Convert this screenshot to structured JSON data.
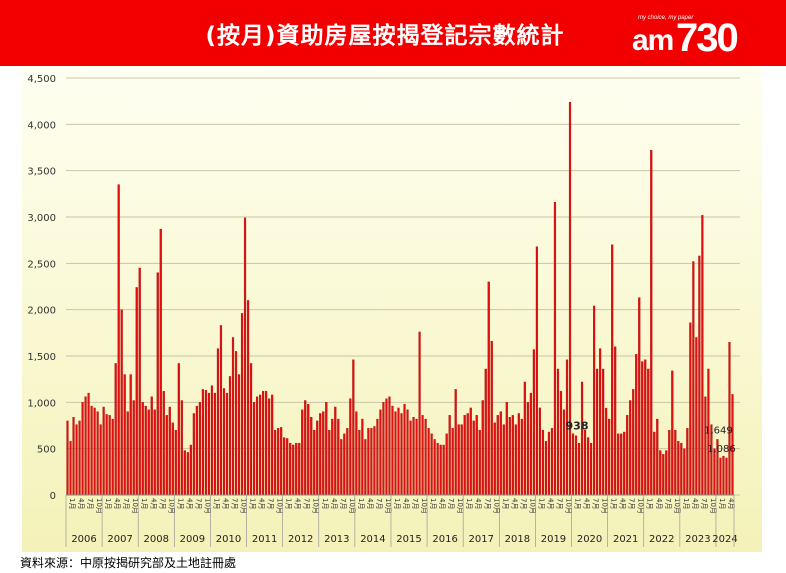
{
  "header": {
    "title": "(按月)資助房屋按揭登記宗數統計",
    "logo_tagline": "my choice, my paper",
    "logo_am": "am",
    "logo_number": "730"
  },
  "source_note": "資料來源：中原按揭研究部及土地註冊處",
  "colors": {
    "banner": "#f20000",
    "bar": "#e01010",
    "bar_edge": "#a80000",
    "plot_bg_top": "#fffff2",
    "plot_bg_bottom": "#f4f2b8"
  },
  "chart_data": {
    "type": "bar",
    "title": "(按月)資助房屋按揭登記宗數統計",
    "ylim": [
      0,
      4500
    ],
    "y_ticks": [
      "0",
      "500",
      "1,000",
      "1,500",
      "2,000",
      "2,500",
      "3,000",
      "3,500",
      "4,000",
      "4,500"
    ],
    "grid": true,
    "month_tick_labels": [
      "1月",
      "4月",
      "7月",
      "10月"
    ],
    "years": [
      "2006",
      "2007",
      "2008",
      "2009",
      "2010",
      "2011",
      "2012",
      "2013",
      "2014",
      "2015",
      "2016",
      "2017",
      "2018",
      "2019",
      "2020",
      "2021",
      "2022",
      "2023",
      "2024"
    ],
    "annotations": [
      {
        "text": "938",
        "year": "2020",
        "month": 2
      },
      {
        "text": "1,649",
        "year": "2024",
        "month": 1
      },
      {
        "text": "1,086",
        "year": "2024",
        "month": 2
      }
    ],
    "series": [
      {
        "values": [
          800,
          580,
          840,
          760,
          800,
          1000,
          1060,
          1100,
          960,
          940,
          900,
          760,
          950,
          870,
          860,
          820,
          1420,
          3350,
          2000,
          1300,
          900,
          1300,
          1020,
          2240,
          2450,
          1000,
          960,
          920,
          1060,
          920,
          2400,
          2870,
          1120,
          860,
          950,
          780,
          700,
          1420,
          1020,
          480,
          460,
          540,
          880,
          960,
          1000,
          1140,
          1130,
          1100,
          1180,
          1100,
          1580,
          1830,
          1150,
          1100,
          1280,
          1700,
          1550,
          1300,
          1960,
          2990,
          2100,
          1420,
          1000,
          1060,
          1080,
          1120,
          1120,
          1040,
          1080,
          700,
          720,
          730,
          620,
          610,
          560,
          540,
          560,
          560,
          920,
          1020,
          980,
          840,
          700,
          800,
          880,
          900,
          1000,
          700,
          820,
          950,
          820,
          600,
          660,
          720,
          1040,
          1460,
          900,
          700,
          820,
          600,
          720,
          720,
          740,
          820,
          920,
          1000,
          1040,
          1060,
          960,
          900,
          940,
          880,
          980,
          920,
          800,
          840,
          820,
          1760,
          860,
          820,
          720,
          660,
          600,
          560,
          540,
          540,
          660,
          860,
          720,
          1140,
          760,
          760,
          860,
          880,
          940,
          800,
          860,
          700,
          1020,
          1360,
          2300,
          1660,
          780,
          860,
          900,
          760,
          1000,
          840,
          860,
          760,
          880,
          820,
          1220,
          1000,
          1100,
          1570,
          2680,
          940,
          700,
          580,
          680,
          720,
          3160,
          1360,
          1120,
          920,
          1460,
          4240,
          660,
          640,
          560,
          1220,
          700,
          620,
          560,
          2040,
          1360,
          1580,
          1360,
          938,
          820,
          2700,
          1600,
          660,
          660,
          680,
          860,
          1020,
          1140,
          1520,
          2130,
          1440,
          1460,
          1360,
          3720,
          680,
          820,
          480,
          440,
          480,
          700,
          1340,
          700,
          580,
          560,
          500,
          720,
          1860,
          2520,
          1700,
          2580,
          3020,
          1060,
          1360,
          760,
          500,
          600,
          400,
          420,
          400,
          1649,
          1086
        ]
      }
    ]
  }
}
